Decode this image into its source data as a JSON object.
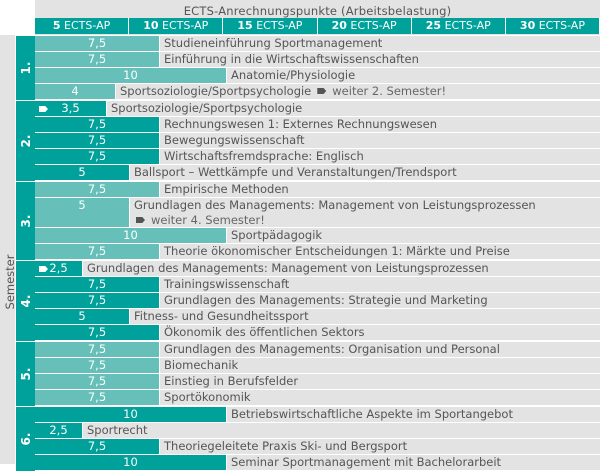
{
  "header": {
    "title": "ECTS-Anrechnungspunkte (Arbeitsbelastung)",
    "columns": [
      {
        "num": "5",
        "unit": "ECTS-AP"
      },
      {
        "num": "10",
        "unit": "ECTS-AP"
      },
      {
        "num": "15",
        "unit": "ECTS-AP"
      },
      {
        "num": "20",
        "unit": "ECTS-AP"
      },
      {
        "num": "25",
        "unit": "ECTS-AP"
      },
      {
        "num": "30",
        "unit": "ECTS-AP"
      }
    ]
  },
  "side_label": "Semester",
  "colors": {
    "dark_teal": "#00a19a",
    "light_teal": "#66c0b9",
    "row_bg": "#e3e3e3"
  },
  "semesters": [
    {
      "label": "1.",
      "courses": [
        {
          "ects": "7,5",
          "title": "Studieneinführung Sportmanagement"
        },
        {
          "ects": "7,5",
          "title": "Einführung in die Wirtschaftswissenschaften"
        },
        {
          "ects": "10",
          "title": "Anatomie/Physiologie"
        },
        {
          "ects": "4",
          "title": "Sportsoziologie/Sportpsychologie",
          "note": "weiter 2. Semester!"
        }
      ]
    },
    {
      "label": "2.",
      "courses": [
        {
          "ects": "3,5",
          "title": "Sportsoziologie/Sportpsychologie",
          "continued": true
        },
        {
          "ects": "7,5",
          "title": "Rechnungswesen 1: Externes Rechnungswesen"
        },
        {
          "ects": "7,5",
          "title": "Bewegungswissenschaft"
        },
        {
          "ects": "7,5",
          "title": "Wirtschaftsfremdsprache: Englisch"
        },
        {
          "ects": "5",
          "title": "Ballsport – Wettkämpfe und Veranstaltungen/Trendsport"
        }
      ]
    },
    {
      "label": "3.",
      "courses": [
        {
          "ects": "7,5",
          "title": "Empirische Methoden"
        },
        {
          "ects": "5",
          "title": "Grundlagen des Managements: Management von Leistungsprozessen",
          "note2": "weiter 4. Semester!"
        },
        {
          "ects": "10",
          "title": "Sportpädagogik"
        },
        {
          "ects": "7,5",
          "title": "Theorie ökonomischer Entscheidungen 1: Märkte und Preise"
        }
      ]
    },
    {
      "label": "4.",
      "courses": [
        {
          "ects": "2,5",
          "title": "Grundlagen des Managements: Management von Leistungsprozessen",
          "continued": true
        },
        {
          "ects": "7,5",
          "title": "Trainingswissenschaft"
        },
        {
          "ects": "7,5",
          "title": "Grundlagen des Managements: Strategie und Marketing"
        },
        {
          "ects": "5",
          "title": "Fitness- und Gesundheitssport"
        },
        {
          "ects": "7,5",
          "title": "Ökonomik des öffentlichen Sektors"
        }
      ]
    },
    {
      "label": "5.",
      "courses": [
        {
          "ects": "7,5",
          "title": "Grundlagen des Managements: Organisation und Personal"
        },
        {
          "ects": "7,5",
          "title": "Biomechanik"
        },
        {
          "ects": "7,5",
          "title": "Einstieg in Berufsfelder"
        },
        {
          "ects": "7,5",
          "title": "Sportökonomik"
        }
      ]
    },
    {
      "label": "6.",
      "courses": [
        {
          "ects": "10",
          "title": "Betriebswirtschaftliche Aspekte im Sportangebot"
        },
        {
          "ects": "2,5",
          "title": "Sportrecht"
        },
        {
          "ects": "7,5",
          "title": "Theoriegeleitete Praxis Ski- und Bergsport"
        },
        {
          "ects": "10",
          "title": "Seminar Sportmanagement mit Bachelorarbeit"
        }
      ]
    }
  ]
}
